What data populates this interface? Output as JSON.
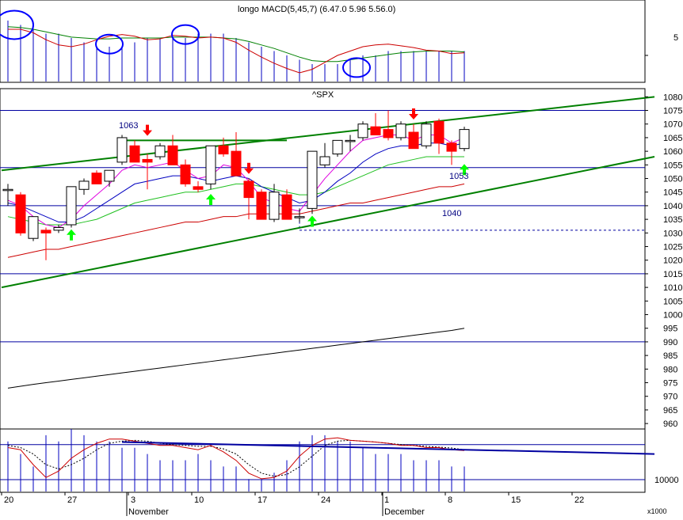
{
  "colors": {
    "background": "#ffffff",
    "frame": "#000000",
    "hline": "#0000a0",
    "trend": "#008000",
    "up_fill": "#ffffff",
    "down_fill": "#ff0000",
    "candle_edge": "#000000",
    "ma_fast": "#e000e0",
    "ma_mid": "#0000c0",
    "ma_slow": "#20c020",
    "ma_long": "#cc0000",
    "long_ma": "#000000",
    "histogram": "#0000c0",
    "ellipse": "#0000ff",
    "arrow_up": "#00ff00",
    "arrow_down": "#ff0000",
    "axis_text": "#000000",
    "label_text": "#000080"
  },
  "top_panel": {
    "title": "longo MACD(5,45,7) (6.47.0 5.96 5.56.0)",
    "tick_label": "5"
  },
  "main_panel": {
    "title": "^SPX",
    "annotations": [
      "1063",
      "1053",
      "1040"
    ]
  },
  "bottom_panel": {
    "tick_label": "10000",
    "unit_label": "x1000"
  },
  "x_axis": {
    "day_labels": [
      "20",
      "27",
      "3",
      "10",
      "17",
      "24",
      "1",
      "8",
      "15",
      "22"
    ],
    "month_labels": [
      "November",
      "December"
    ]
  },
  "chart_data": {
    "type": "candlestick",
    "title": "^SPX",
    "y_axis": {
      "ticks": [
        960,
        965,
        970,
        975,
        980,
        985,
        990,
        995,
        1000,
        1005,
        1010,
        1015,
        1020,
        1025,
        1030,
        1035,
        1040,
        1045,
        1050,
        1055,
        1060,
        1065,
        1070,
        1075,
        1080
      ],
      "range": [
        958,
        1083
      ]
    },
    "x_axis": {
      "day_labels": [
        "20",
        "27",
        "3",
        "10",
        "17",
        "24",
        "1",
        "8",
        "15",
        "22"
      ],
      "months": [
        "November",
        "December"
      ]
    },
    "candles": [
      {
        "o": 1046,
        "h": 1048,
        "l": 1040,
        "c": 1046
      },
      {
        "o": 1044,
        "h": 1045,
        "l": 1029,
        "c": 1030
      },
      {
        "o": 1028,
        "h": 1036,
        "l": 1027,
        "c": 1036
      },
      {
        "o": 1031,
        "h": 1032,
        "l": 1020,
        "c": 1030
      },
      {
        "o": 1031,
        "h": 1033,
        "l": 1030,
        "c": 1032
      },
      {
        "o": 1033,
        "h": 1047,
        "l": 1032,
        "c": 1047
      },
      {
        "o": 1046,
        "h": 1050,
        "l": 1044,
        "c": 1049
      },
      {
        "o": 1052,
        "h": 1053,
        "l": 1048,
        "c": 1048
      },
      {
        "o": 1049,
        "h": 1053,
        "l": 1047,
        "c": 1053
      },
      {
        "o": 1056,
        "h": 1066,
        "l": 1055,
        "c": 1065
      },
      {
        "o": 1062,
        "h": 1064,
        "l": 1056,
        "c": 1056
      },
      {
        "o": 1057,
        "h": 1059,
        "l": 1046,
        "c": 1056
      },
      {
        "o": 1058,
        "h": 1063,
        "l": 1057,
        "c": 1062
      },
      {
        "o": 1062,
        "h": 1066,
        "l": 1055,
        "c": 1055
      },
      {
        "o": 1055,
        "h": 1057,
        "l": 1047,
        "c": 1048
      },
      {
        "o": 1047,
        "h": 1049,
        "l": 1045,
        "c": 1046
      },
      {
        "o": 1048,
        "h": 1062,
        "l": 1046,
        "c": 1062
      },
      {
        "o": 1062,
        "h": 1065,
        "l": 1058,
        "c": 1059
      },
      {
        "o": 1060,
        "h": 1067,
        "l": 1051,
        "c": 1051
      },
      {
        "o": 1049,
        "h": 1050,
        "l": 1035,
        "c": 1043
      },
      {
        "o": 1045,
        "h": 1046,
        "l": 1035,
        "c": 1035
      },
      {
        "o": 1035,
        "h": 1048,
        "l": 1034,
        "c": 1045
      },
      {
        "o": 1044,
        "h": 1046,
        "l": 1035,
        "c": 1035
      },
      {
        "o": 1036,
        "h": 1039,
        "l": 1034,
        "c": 1036
      },
      {
        "o": 1039,
        "h": 1060,
        "l": 1037,
        "c": 1060
      },
      {
        "o": 1055,
        "h": 1063,
        "l": 1054,
        "c": 1058
      },
      {
        "o": 1059,
        "h": 1064,
        "l": 1058,
        "c": 1064
      },
      {
        "o": 1064,
        "h": 1066,
        "l": 1060,
        "c": 1064
      },
      {
        "o": 1065,
        "h": 1071,
        "l": 1064,
        "c": 1070
      },
      {
        "o": 1069,
        "h": 1074,
        "l": 1066,
        "c": 1066
      },
      {
        "o": 1068,
        "h": 1075,
        "l": 1064,
        "c": 1065
      },
      {
        "o": 1065,
        "h": 1071,
        "l": 1064,
        "c": 1070
      },
      {
        "o": 1067,
        "h": 1070,
        "l": 1061,
        "c": 1061
      },
      {
        "o": 1062,
        "h": 1071,
        "l": 1061,
        "c": 1070
      },
      {
        "o": 1071,
        "h": 1072,
        "l": 1059,
        "c": 1063
      },
      {
        "o": 1063,
        "h": 1064,
        "l": 1055,
        "c": 1060
      },
      {
        "o": 1061,
        "h": 1069,
        "l": 1060,
        "c": 1068
      }
    ],
    "ma_fast": [
      1042,
      1040,
      1036,
      1033,
      1032,
      1035,
      1040,
      1044,
      1048,
      1053,
      1055,
      1054,
      1055,
      1056,
      1053,
      1050,
      1051,
      1055,
      1054,
      1049,
      1043,
      1041,
      1039,
      1038,
      1044,
      1050,
      1055,
      1060,
      1064,
      1065,
      1066,
      1066,
      1064,
      1066,
      1066,
      1063,
      1065
    ],
    "ma_mid": [
      1041,
      1040,
      1038,
      1036,
      1034,
      1034,
      1036,
      1039,
      1042,
      1045,
      1048,
      1049,
      1050,
      1051,
      1051,
      1050,
      1049,
      1050,
      1051,
      1050,
      1047,
      1045,
      1043,
      1041,
      1042,
      1045,
      1049,
      1052,
      1056,
      1059,
      1061,
      1062,
      1062,
      1063,
      1063,
      1062,
      1063
    ],
    "ma_slow": [
      1036,
      1035,
      1034,
      1033,
      1033,
      1033,
      1034,
      1035,
      1037,
      1039,
      1041,
      1042,
      1043,
      1044,
      1045,
      1045,
      1046,
      1047,
      1048,
      1048,
      1047,
      1046,
      1045,
      1044,
      1044,
      1045,
      1047,
      1049,
      1051,
      1053,
      1055,
      1056,
      1057,
      1058,
      1058,
      1058,
      1058
    ],
    "ma_long": [
      1021,
      1022,
      1023,
      1024,
      1024,
      1025,
      1026,
      1027,
      1028,
      1029,
      1030,
      1031,
      1032,
      1033,
      1034,
      1034,
      1035,
      1036,
      1036,
      1037,
      1037,
      1037,
      1037,
      1037,
      1038,
      1039,
      1040,
      1041,
      1041,
      1042,
      1043,
      1044,
      1045,
      1046,
      1047,
      1047,
      1048
    ],
    "long_ma": [
      973,
      973.7,
      974.4,
      975,
      975.6,
      976.2,
      976.8,
      977.4,
      978,
      978.6,
      979.2,
      979.8,
      980.4,
      981,
      981.6,
      982.2,
      982.8,
      983.4,
      984,
      984.6,
      985.2,
      985.8,
      986.4,
      987,
      987.6,
      988.2,
      988.8,
      989.4,
      990,
      990.6,
      991.2,
      991.8,
      992.4,
      993,
      993.6,
      994.2,
      995
    ],
    "horizontal_levels": [
      1075,
      1054,
      1040,
      1015,
      990
    ],
    "level_labels": [
      {
        "text": "1063",
        "value": 1063
      },
      {
        "text": "1053",
        "value": 1053
      },
      {
        "text": "1040",
        "value": 1040
      }
    ],
    "dashed_level": 1031,
    "trendlines": [
      {
        "from": [
          -0.5,
          1053
        ],
        "to": [
          51,
          1080
        ]
      },
      {
        "from": [
          -0.5,
          1010
        ],
        "to": [
          51,
          1058
        ]
      },
      {
        "from": [
          9,
          1064
        ],
        "to": [
          22,
          1064
        ]
      }
    ],
    "arrows_up": [
      {
        "i": 5,
        "v": 1029
      },
      {
        "i": 16,
        "v": 1042
      },
      {
        "i": 24,
        "v": 1034
      },
      {
        "i": 36,
        "v": 1053
      }
    ],
    "arrows_down": [
      {
        "i": 11,
        "v": 1068
      },
      {
        "i": 19,
        "v": 1054
      },
      {
        "i": 32,
        "v": 1074
      }
    ],
    "macd": {
      "title": "longo MACD(5,45,7) (6.47.0 5.96 5.56.0)",
      "histogram": [
        9,
        8.5,
        8,
        7.5,
        7.5,
        7,
        6.5,
        6,
        6,
        6,
        6.5,
        7,
        7,
        7,
        7,
        7.5,
        7.5,
        7.5,
        7,
        6.5,
        6,
        5.5,
        5,
        4.5,
        4,
        4,
        4,
        4.5,
        5,
        5,
        5.5,
        5.5,
        5.5,
        5.5,
        5.5,
        5.5,
        5.5
      ],
      "line": [
        8,
        8,
        7.6,
        6.8,
        6.2,
        6,
        6.3,
        6.8,
        7.2,
        7.4,
        7.2,
        6.8,
        6.9,
        7.3,
        7.2,
        7,
        7.1,
        7,
        6.5,
        5.6,
        4.8,
        4.1,
        3.5,
        3,
        3.4,
        4.2,
        5,
        5.5,
        6,
        6.2,
        6.3,
        6.1,
        5.9,
        5.6,
        5.5,
        5.2,
        5.3
      ],
      "signal": [
        8.3,
        8.2,
        8,
        7.7,
        7.4,
        7.1,
        7,
        6.9,
        6.9,
        7,
        7,
        7,
        7,
        7.1,
        7.1,
        7.1,
        7.1,
        7,
        6.9,
        6.6,
        6.2,
        5.8,
        5.3,
        4.8,
        4.4,
        4.3,
        4.3,
        4.5,
        4.7,
        4.9,
        5.1,
        5.3,
        5.4,
        5.5,
        5.5,
        5.5,
        5.4
      ],
      "y_range": [
        2,
        11
      ],
      "tick": 5
    },
    "oscillator": {
      "histogram": [
        0.8,
        0.6,
        0.4,
        0.9,
        0.8,
        1,
        0.9,
        0.8,
        0.8,
        0.7,
        0.7,
        0.6,
        0.5,
        0.5,
        0.5,
        0.6,
        0.5,
        0.4,
        0.4,
        0.2,
        0.2,
        0.3,
        0.5,
        0.8,
        0.9,
        0.9,
        0.8,
        0.8,
        0.7,
        0.6,
        0.6,
        0.6,
        0.5,
        0.5,
        0.5,
        0.4,
        0.4
      ],
      "line": [
        0.75,
        0.7,
        0.35,
        0.05,
        0.2,
        0.5,
        0.7,
        0.85,
        0.95,
        0.95,
        0.9,
        0.85,
        0.8,
        0.8,
        0.75,
        0.7,
        0.8,
        0.65,
        0.45,
        0.15,
        0.02,
        0.05,
        0.2,
        0.55,
        0.8,
        0.95,
        0.98,
        0.92,
        0.9,
        0.88,
        0.85,
        0.8,
        0.8,
        0.75,
        0.75,
        0.7,
        0.68
      ],
      "signal": [
        0.8,
        0.75,
        0.6,
        0.35,
        0.25,
        0.35,
        0.5,
        0.7,
        0.85,
        0.9,
        0.92,
        0.9,
        0.85,
        0.82,
        0.8,
        0.78,
        0.78,
        0.72,
        0.6,
        0.35,
        0.15,
        0.08,
        0.12,
        0.3,
        0.55,
        0.8,
        0.9,
        0.92,
        0.9,
        0.88,
        0.85,
        0.82,
        0.8,
        0.78,
        0.76,
        0.74,
        0.7
      ],
      "upper_level": 0.82,
      "lower_level": 0.0,
      "tick": 10000,
      "trendline": {
        "from": [
          9,
          0.88
        ],
        "to": [
          51,
          0.6
        ]
      }
    },
    "ellipses": [
      {
        "panel": "macd",
        "i": 0.5,
        "v": 8.5
      },
      {
        "panel": "macd",
        "i": 8,
        "v": 6.3
      },
      {
        "panel": "macd",
        "i": 14,
        "v": 7.4
      },
      {
        "panel": "macd",
        "i": 27.5,
        "v": 3.6
      }
    ]
  }
}
